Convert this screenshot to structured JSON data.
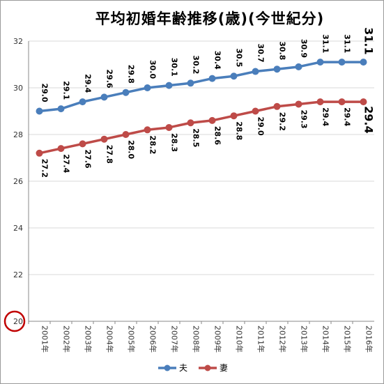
{
  "title": "平均初婚年齢推移(歳)(今世紀分)",
  "chart_data": {
    "type": "line",
    "title": "平均初婚年齢推移(歳)(今世紀分)",
    "categories": [
      "2001年",
      "2002年",
      "2003年",
      "2004年",
      "2005年",
      "2006年",
      "2007年",
      "2008年",
      "2009年",
      "2010年",
      "2011年",
      "2012年",
      "2013年",
      "2014年",
      "2015年",
      "2016年"
    ],
    "series": [
      {
        "name": "夫",
        "color": "#4a7ebb",
        "values": [
          29.0,
          29.1,
          29.4,
          29.6,
          29.8,
          30.0,
          30.1,
          30.2,
          30.4,
          30.5,
          30.7,
          30.8,
          30.9,
          31.1,
          31.1,
          31.1
        ]
      },
      {
        "name": "妻",
        "color": "#be4b48",
        "values": [
          27.2,
          27.4,
          27.6,
          27.8,
          28.0,
          28.2,
          28.3,
          28.5,
          28.6,
          28.8,
          29.0,
          29.2,
          29.3,
          29.4,
          29.4,
          29.4
        ]
      }
    ],
    "ylim": [
      20,
      32
    ],
    "yticks": [
      20,
      22,
      24,
      26,
      28,
      30,
      32
    ],
    "ytick_labels": [
      "20",
      "22",
      "24",
      "26",
      "28",
      "30",
      "32"
    ],
    "grid": true,
    "legend": "bottom",
    "highlight": {
      "value": "20",
      "color": "#c00000"
    }
  }
}
